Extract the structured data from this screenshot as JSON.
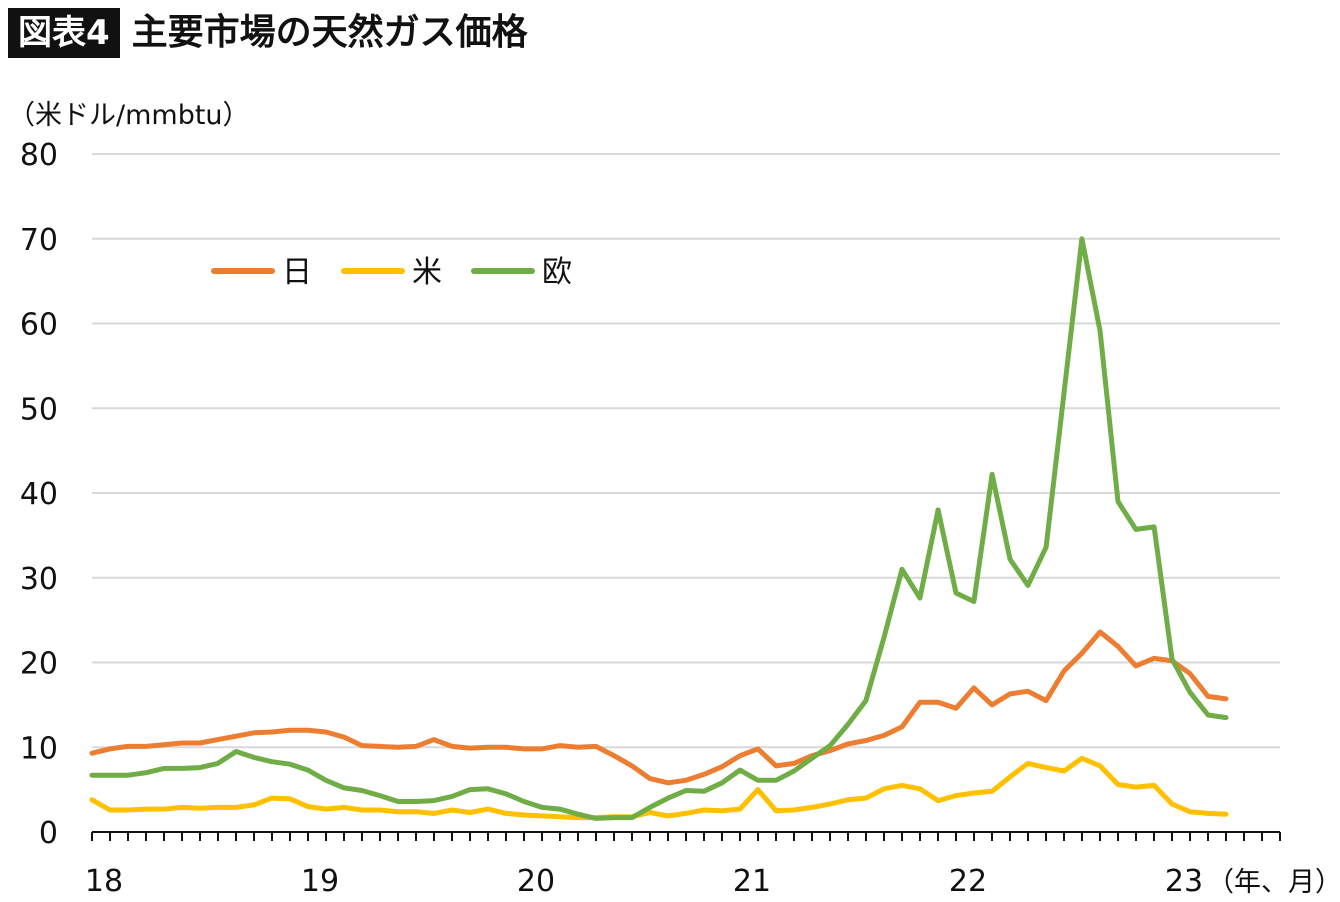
{
  "header": {
    "badge": "図表4",
    "title": "主要市場の天然ガス価格"
  },
  "chart_data": {
    "type": "line",
    "ylabel": "（米ドル/mmbtu）",
    "xlabel": "（年、月）",
    "ylim": [
      0,
      80
    ],
    "yticks": [
      0,
      10,
      20,
      30,
      40,
      50,
      60,
      70,
      80
    ],
    "xlim": [
      2018.0,
      2023.5
    ],
    "xtick_labels": [
      "18",
      "19",
      "20",
      "21",
      "22",
      "23"
    ],
    "grid": "horizontal",
    "legend_position": "top-left",
    "x": [
      2018.0,
      2018.083,
      2018.167,
      2018.25,
      2018.333,
      2018.417,
      2018.5,
      2018.583,
      2018.667,
      2018.75,
      2018.833,
      2018.917,
      2019.0,
      2019.083,
      2019.167,
      2019.25,
      2019.333,
      2019.417,
      2019.5,
      2019.583,
      2019.667,
      2019.75,
      2019.833,
      2019.917,
      2020.0,
      2020.083,
      2020.167,
      2020.25,
      2020.333,
      2020.417,
      2020.5,
      2020.583,
      2020.667,
      2020.75,
      2020.833,
      2020.917,
      2021.0,
      2021.083,
      2021.167,
      2021.25,
      2021.333,
      2021.417,
      2021.5,
      2021.583,
      2021.667,
      2021.75,
      2021.833,
      2021.917,
      2022.0,
      2022.083,
      2022.167,
      2022.25,
      2022.333,
      2022.417,
      2022.5,
      2022.583,
      2022.667,
      2022.75,
      2022.833,
      2022.917,
      2023.0,
      2023.083,
      2023.167,
      2023.25
    ],
    "series": [
      {
        "name": "日",
        "color": "#ED7D31",
        "values": [
          9.3,
          9.8,
          10.1,
          10.1,
          10.3,
          10.5,
          10.5,
          10.9,
          11.3,
          11.7,
          11.8,
          12.0,
          12.0,
          11.8,
          11.2,
          10.2,
          10.1,
          10.0,
          10.1,
          10.9,
          10.1,
          9.9,
          10.0,
          10.0,
          9.8,
          9.8,
          10.2,
          10.0,
          10.1,
          9.0,
          7.8,
          6.3,
          5.8,
          6.1,
          6.8,
          7.7,
          9.0,
          9.8,
          7.8,
          8.1,
          9.0,
          9.6,
          10.4,
          10.8,
          11.4,
          12.4,
          15.3,
          15.3,
          14.6,
          17.0,
          15.0,
          16.3,
          16.6,
          15.5,
          19.0,
          21.1,
          23.6,
          21.9,
          19.6,
          20.5,
          20.2,
          18.7,
          16.0,
          15.7
        ]
      },
      {
        "name": "米",
        "color": "#FFC000",
        "values": [
          3.8,
          2.6,
          2.6,
          2.7,
          2.7,
          2.9,
          2.8,
          2.9,
          2.9,
          3.2,
          4.0,
          3.9,
          3.0,
          2.7,
          2.9,
          2.6,
          2.6,
          2.4,
          2.4,
          2.2,
          2.6,
          2.3,
          2.7,
          2.2,
          2.0,
          1.9,
          1.8,
          1.7,
          1.7,
          1.8,
          1.8,
          2.3,
          1.9,
          2.2,
          2.6,
          2.5,
          2.7,
          5.0,
          2.5,
          2.6,
          2.9,
          3.3,
          3.8,
          4.0,
          5.1,
          5.5,
          5.1,
          3.7,
          4.3,
          4.6,
          4.8,
          6.5,
          8.1,
          7.6,
          7.2,
          8.7,
          7.8,
          5.6,
          5.3,
          5.5,
          3.3,
          2.4,
          2.2,
          2.1
        ]
      },
      {
        "name": "欧",
        "color": "#70AD47",
        "values": [
          6.7,
          6.7,
          6.7,
          7.0,
          7.5,
          7.5,
          7.6,
          8.1,
          9.5,
          8.8,
          8.3,
          8.0,
          7.3,
          6.1,
          5.2,
          4.9,
          4.3,
          3.6,
          3.6,
          3.7,
          4.2,
          5.0,
          5.1,
          4.5,
          3.6,
          2.9,
          2.7,
          2.1,
          1.6,
          1.7,
          1.7,
          2.9,
          4.0,
          4.9,
          4.8,
          5.8,
          7.3,
          6.1,
          6.1,
          7.2,
          8.7,
          10.2,
          12.7,
          15.5,
          23.0,
          31.0,
          27.6,
          38.0,
          28.2,
          27.2,
          42.2,
          32.2,
          29.1,
          33.6,
          51.8,
          70.0,
          59.1,
          39.0,
          35.7,
          36.0,
          20.4,
          16.5,
          13.8,
          13.5
        ]
      }
    ]
  }
}
